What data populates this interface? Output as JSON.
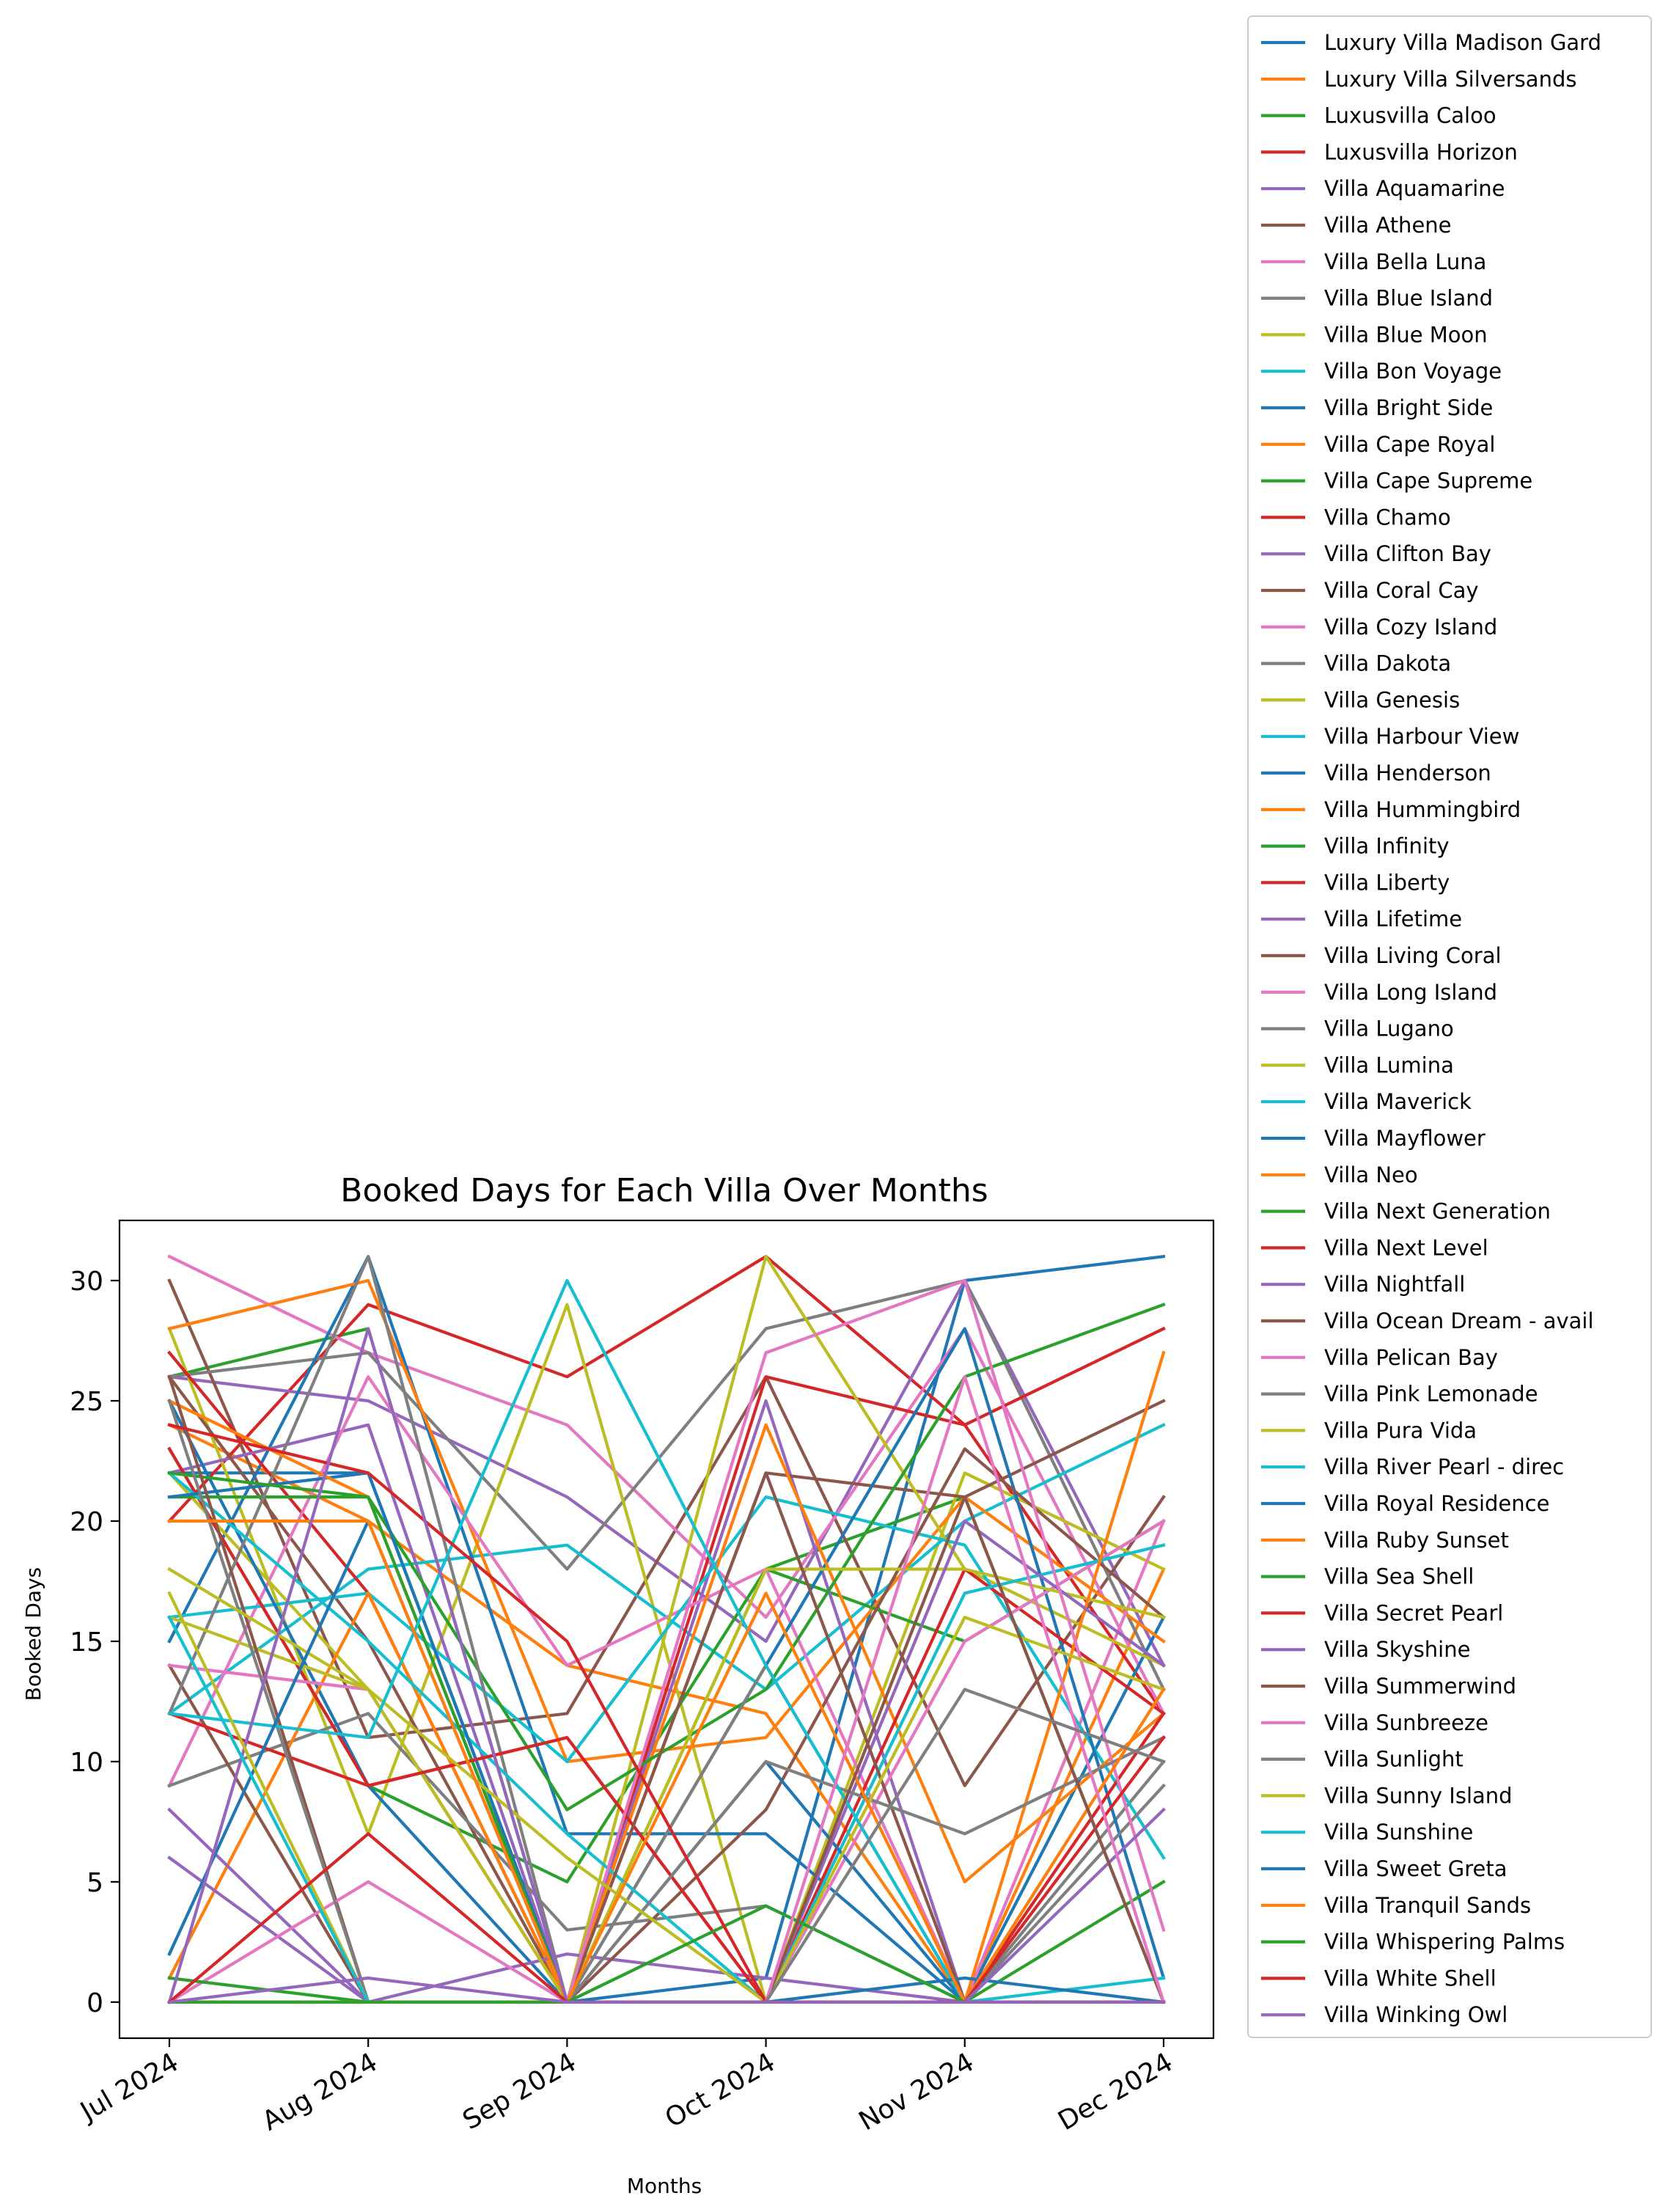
{
  "chart_data": {
    "type": "line",
    "title": "Booked Days for Each Villa Over Months",
    "xlabel": "Months",
    "ylabel": "Booked Days",
    "categories": [
      "Jul 2024",
      "Aug 2024",
      "Sep 2024",
      "Oct 2024",
      "Nov 2024",
      "Dec 2024"
    ],
    "ylim": [
      -1.5,
      32.5
    ],
    "yticks": [
      0,
      5,
      10,
      15,
      20,
      25,
      30
    ],
    "grid": false,
    "legend_position": "outside-right",
    "palette": [
      "#1f77b4",
      "#ff7f0e",
      "#2ca02c",
      "#d62728",
      "#9467bd",
      "#8c564b",
      "#e377c2",
      "#7f7f7f",
      "#bcbd22",
      "#17becf"
    ],
    "series": [
      {
        "name": "Luxury Villa Madison Gard",
        "values": [
          22,
          22,
          0,
          1,
          30,
          31
        ]
      },
      {
        "name": "Luxury Villa Silversands",
        "values": [
          24,
          20,
          14,
          12,
          0,
          18
        ]
      },
      {
        "name": "Luxusvilla Caloo",
        "values": [
          26,
          28,
          0,
          18,
          21,
          0
        ]
      },
      {
        "name": "Luxusvilla Horizon",
        "values": [
          20,
          29,
          26,
          31,
          24,
          12
        ]
      },
      {
        "name": "Villa Aquamarine",
        "values": [
          26,
          25,
          21,
          15,
          30,
          14
        ]
      },
      {
        "name": "Villa Athene",
        "values": [
          30,
          11,
          12,
          26,
          9,
          21
        ]
      },
      {
        "name": "Villa Bella Luna",
        "values": [
          31,
          27,
          24,
          16,
          28,
          12
        ]
      },
      {
        "name": "Villa Blue Island",
        "values": [
          26,
          27,
          18,
          28,
          30,
          13
        ]
      },
      {
        "name": "Villa Blue Moon",
        "values": [
          28,
          7,
          29,
          0,
          22,
          18
        ]
      },
      {
        "name": "Villa Bon Voyage",
        "values": [
          12,
          18,
          19,
          13,
          20,
          24
        ]
      },
      {
        "name": "Villa Bright Side",
        "values": [
          15,
          31,
          7,
          7,
          0,
          16
        ]
      },
      {
        "name": "Villa Cape Royal",
        "values": [
          28,
          30,
          10,
          11,
          21,
          15
        ]
      },
      {
        "name": "Villa Cape Supreme",
        "values": [
          23,
          9,
          5,
          18,
          15,
          20
        ]
      },
      {
        "name": "Villa Chamo",
        "values": [
          27,
          17,
          0,
          26,
          24,
          28
        ]
      },
      {
        "name": "Villa Clifton Bay",
        "values": [
          22,
          24,
          0,
          25,
          0,
          0
        ]
      },
      {
        "name": "Villa Coral Cay",
        "values": [
          26,
          15,
          0,
          22,
          21,
          25
        ]
      },
      {
        "name": "Villa Cozy Island",
        "values": [
          9,
          26,
          14,
          18,
          0,
          20
        ]
      },
      {
        "name": "Villa Dakota",
        "values": [
          9,
          12,
          3,
          4,
          0,
          10
        ]
      },
      {
        "name": "Villa Genesis",
        "values": [
          22,
          13,
          0,
          31,
          18,
          14
        ]
      },
      {
        "name": "Villa Harbour View",
        "values": [
          16,
          17,
          10,
          21,
          19,
          6
        ]
      },
      {
        "name": "Villa Henderson",
        "values": [
          25,
          9,
          0,
          14,
          28,
          1
        ]
      },
      {
        "name": "Villa Hummingbird",
        "values": [
          1,
          17,
          0,
          24,
          5,
          12
        ]
      },
      {
        "name": "Villa Infinity",
        "values": [
          21,
          21,
          8,
          13,
          26,
          29
        ]
      },
      {
        "name": "Villa Liberty",
        "values": [
          23,
          9,
          11,
          0,
          18,
          12
        ]
      },
      {
        "name": "Villa Lifetime",
        "values": [
          8,
          0,
          2,
          1,
          0,
          0
        ]
      },
      {
        "name": "Villa Living Coral",
        "values": [
          14,
          0,
          0,
          8,
          23,
          16
        ]
      },
      {
        "name": "Villa Long Island",
        "values": [
          14,
          13,
          0,
          0,
          15,
          20
        ]
      },
      {
        "name": "Villa Lugano",
        "values": [
          12,
          31,
          0,
          14,
          0,
          9
        ]
      },
      {
        "name": "Villa Lumina",
        "values": [
          16,
          13,
          0,
          18,
          18,
          16
        ]
      },
      {
        "name": "Villa Maverick",
        "values": [
          22,
          15,
          7,
          0,
          17,
          19
        ]
      },
      {
        "name": "Villa Mayflower",
        "values": [
          21,
          22,
          0,
          10,
          0,
          0
        ]
      },
      {
        "name": "Villa Neo",
        "values": [
          25,
          21,
          0,
          0,
          0,
          27
        ]
      },
      {
        "name": "Villa Next Generation",
        "values": [
          22,
          21,
          0,
          0,
          0,
          5
        ]
      },
      {
        "name": "Villa Next Level",
        "values": [
          12,
          9,
          11,
          0,
          0,
          12
        ]
      },
      {
        "name": "Villa Nightfall",
        "values": [
          6,
          0,
          0,
          0,
          20,
          14
        ]
      },
      {
        "name": "Villa Ocean Dream - avail",
        "values": [
          26,
          0,
          0,
          22,
          0,
          0
        ]
      },
      {
        "name": "Villa Pelican Bay",
        "values": [
          0,
          5,
          0,
          27,
          30,
          3
        ]
      },
      {
        "name": "Villa Pink Lemonade",
        "values": [
          25,
          0,
          0,
          10,
          7,
          11
        ]
      },
      {
        "name": "Villa Pura Vida",
        "values": [
          18,
          13,
          6,
          0,
          16,
          13
        ]
      },
      {
        "name": "Villa River Pearl - direc",
        "values": [
          12,
          11,
          30,
          14,
          0,
          1
        ]
      },
      {
        "name": "Villa Royal Residence",
        "values": [
          2,
          20,
          0,
          0,
          1,
          0
        ]
      },
      {
        "name": "Villa Ruby Sunset",
        "values": [
          20,
          20,
          0,
          17,
          0,
          13
        ]
      },
      {
        "name": "Villa Sea Shell",
        "values": [
          1,
          0,
          0,
          4,
          0,
          0
        ]
      },
      {
        "name": "Villa Secret Pearl",
        "values": [
          24,
          22,
          15,
          0,
          0,
          11
        ]
      },
      {
        "name": "Villa Skyshine",
        "values": [
          0,
          28,
          0,
          0,
          0,
          8
        ]
      },
      {
        "name": "Villa Summerwind",
        "values": [
          0,
          0,
          0,
          0,
          21,
          0
        ]
      },
      {
        "name": "Villa Sunbreeze",
        "values": [
          0,
          0,
          0,
          0,
          26,
          0
        ]
      },
      {
        "name": "Villa Sunlight",
        "values": [
          0,
          0,
          0,
          0,
          13,
          10
        ]
      },
      {
        "name": "Villa Sunny Island",
        "values": [
          17,
          0,
          0,
          0,
          0,
          0
        ]
      },
      {
        "name": "Villa Sunshine",
        "values": [
          16,
          0,
          0,
          0,
          0,
          0
        ]
      },
      {
        "name": "Villa Sweet Greta",
        "values": [
          0,
          0,
          0,
          0,
          0,
          0
        ]
      },
      {
        "name": "Villa Tranquil Sands",
        "values": [
          0,
          0,
          0,
          0,
          0,
          0
        ]
      },
      {
        "name": "Villa Whispering Palms",
        "values": [
          0,
          0,
          0,
          0,
          0,
          0
        ]
      },
      {
        "name": "Villa White Shell",
        "values": [
          0,
          7,
          0,
          0,
          0,
          0
        ]
      },
      {
        "name": "Villa Winking Owl",
        "values": [
          0,
          1,
          0,
          0,
          0,
          0
        ]
      }
    ]
  }
}
